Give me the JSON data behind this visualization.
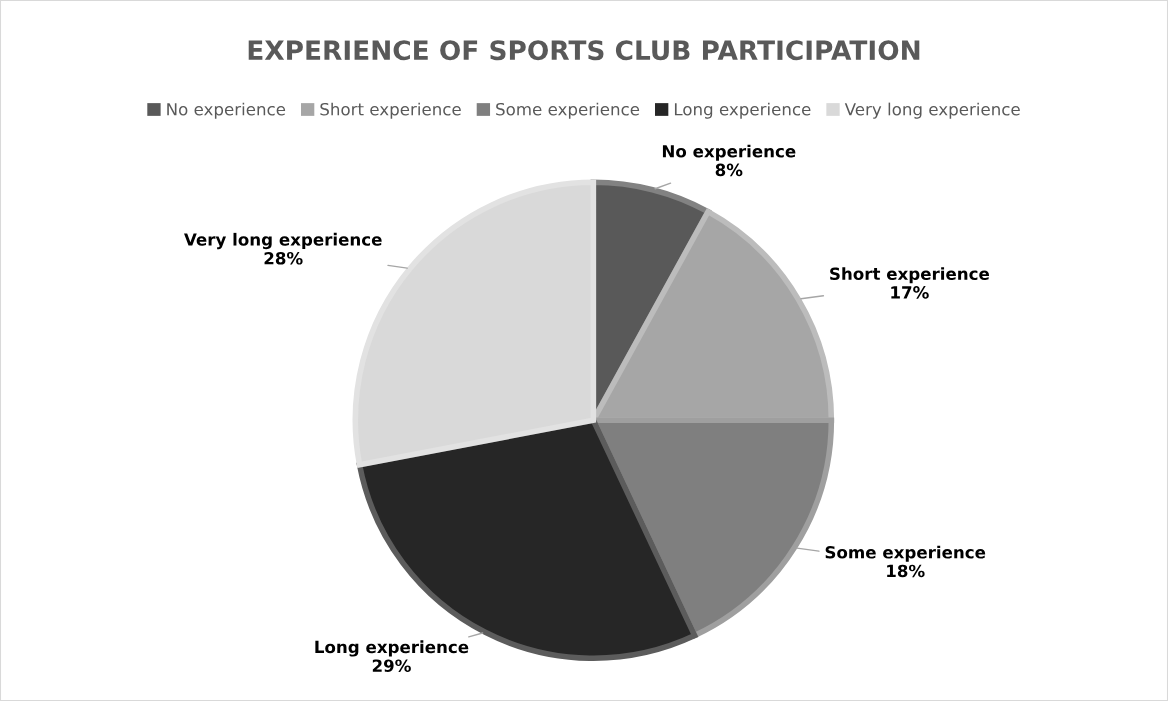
{
  "chart_data": {
    "type": "pie",
    "title": "EXPERIENCE OF SPORTS CLUB PARTICIPATION",
    "categories": [
      "No experience",
      "Short experience",
      "Some experience",
      "Long experience",
      "Very long experience"
    ],
    "values": [
      8,
      17,
      18,
      29,
      28
    ],
    "colors": [
      "#595959",
      "#a6a6a6",
      "#7f7f7f",
      "#262626",
      "#d9d9d9"
    ],
    "value_labels": [
      "8%",
      "17%",
      "18%",
      "29%",
      "28%"
    ],
    "legend": "top"
  }
}
